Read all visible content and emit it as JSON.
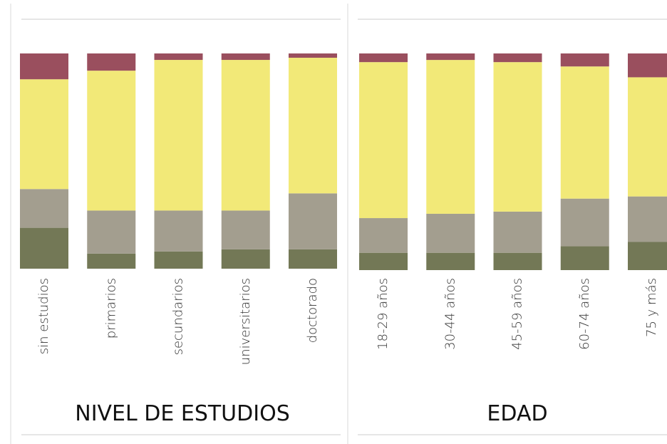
{
  "chart_data": [
    {
      "type": "stacked_bar",
      "title": "NIVEL DE ESTUDIOS",
      "categories": [
        "sin estudios",
        "primarios",
        "secundarios",
        "universitarios",
        "doctorado"
      ],
      "ylim": [
        0,
        100
      ],
      "series": [
        {
          "color": "#737856",
          "values": [
            19,
            7,
            8,
            9,
            9
          ]
        },
        {
          "color": "#a39e8f",
          "values": [
            18,
            20,
            19,
            18,
            26
          ]
        },
        {
          "color": "#f2e978",
          "values": [
            51,
            65,
            70,
            70,
            63
          ]
        },
        {
          "color": "#9a4f5e",
          "values": [
            12,
            8,
            3,
            3,
            2
          ]
        }
      ]
    },
    {
      "type": "stacked_bar",
      "title": "EDAD",
      "categories": [
        "18-29 años",
        "30-44 años",
        "45-59 años",
        "60-74 años",
        "75 y más"
      ],
      "ylim": [
        0,
        100
      ],
      "series": [
        {
          "color": "#737856",
          "values": [
            8,
            8,
            8,
            11,
            13
          ]
        },
        {
          "color": "#a39e8f",
          "values": [
            16,
            18,
            19,
            22,
            21
          ]
        },
        {
          "color": "#f2e978",
          "values": [
            72,
            71,
            69,
            61,
            55
          ]
        },
        {
          "color": "#9a4f5e",
          "values": [
            4,
            3,
            4,
            6,
            11
          ]
        }
      ]
    }
  ]
}
